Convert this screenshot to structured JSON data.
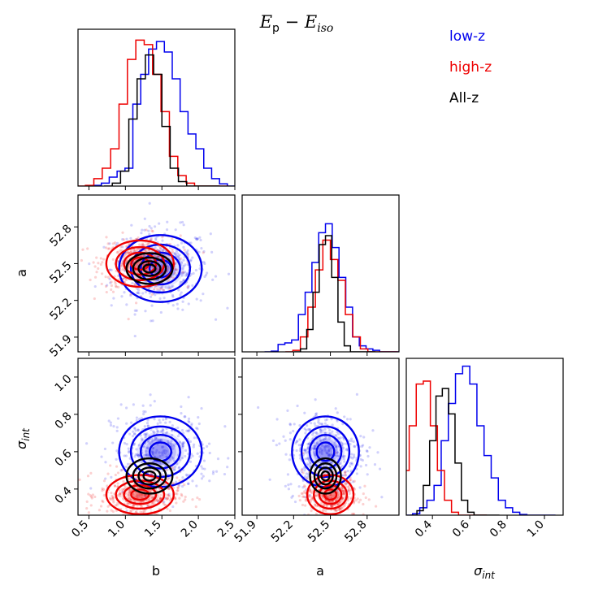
{
  "chart_data": {
    "type": "corner",
    "title": {
      "main": "E",
      "main_sub": "p",
      "dash": " − ",
      "second": "E",
      "second_sub": "iso"
    },
    "parameters": [
      {
        "name": "b",
        "label": "b",
        "range": [
          0.35,
          2.5
        ],
        "ticks": [
          0.5,
          1.0,
          1.5,
          2.0,
          2.5
        ]
      },
      {
        "name": "a",
        "label": "a",
        "range": [
          51.78,
          53.06
        ],
        "ticks": [
          51.9,
          52.2,
          52.5,
          52.8
        ]
      },
      {
        "name": "sigma_int",
        "label": "σ",
        "label_sub": "int",
        "range": [
          0.26,
          1.1
        ],
        "ticks": [
          0.4,
          0.6,
          0.8,
          1.0
        ]
      }
    ],
    "series": [
      {
        "name": "low-z",
        "color": "#0000ee",
        "mean": {
          "b": 1.48,
          "a": 52.46,
          "sigma_int": 0.6
        },
        "sd": {
          "b": 0.27,
          "a": 0.13,
          "sigma_int": 0.09
        },
        "hist_b": [
          0.005,
          0.02,
          0.06,
          0.1,
          0.12,
          0.55,
          0.75,
          0.92,
          0.97,
          0.9,
          0.72,
          0.5,
          0.35,
          0.25,
          0.12,
          0.05,
          0.015
        ],
        "hist_a": [
          0.005,
          0.05,
          0.06,
          0.08,
          0.25,
          0.4,
          0.6,
          0.8,
          0.86,
          0.7,
          0.5,
          0.3,
          0.1,
          0.04,
          0.02,
          0.01
        ],
        "hist_sigma_int": [
          0.01,
          0.05,
          0.1,
          0.2,
          0.5,
          0.75,
          0.95,
          1.0,
          0.88,
          0.6,
          0.4,
          0.25,
          0.1,
          0.05,
          0.02,
          0.005
        ]
      },
      {
        "name": "high-z",
        "color": "#ee0000",
        "mean": {
          "b": 1.2,
          "a": 52.5,
          "sigma_int": 0.37
        },
        "sd": {
          "b": 0.22,
          "a": 0.09,
          "sigma_int": 0.05
        },
        "hist_b": [
          0.005,
          0.05,
          0.12,
          0.25,
          0.55,
          0.85,
          0.98,
          0.95,
          0.75,
          0.5,
          0.2,
          0.07,
          0.02
        ],
        "hist_a": [
          0.01,
          0.1,
          0.3,
          0.55,
          0.75,
          0.62,
          0.48,
          0.25,
          0.1,
          0.02
        ],
        "hist_sigma_int": [
          0.05,
          0.3,
          0.6,
          0.88,
          0.9,
          0.6,
          0.3,
          0.1,
          0.02
        ]
      },
      {
        "name": "All-z",
        "color": "#000000",
        "mean": {
          "b": 1.33,
          "a": 52.46,
          "sigma_int": 0.47
        },
        "sd": {
          "b": 0.15,
          "a": 0.06,
          "sigma_int": 0.045
        },
        "hist_b": [
          0.02,
          0.1,
          0.45,
          0.72,
          0.88,
          0.75,
          0.4,
          0.12,
          0.03
        ],
        "hist_a": [
          0.02,
          0.15,
          0.4,
          0.72,
          0.78,
          0.5,
          0.2,
          0.04
        ],
        "hist_sigma_int": [
          0.03,
          0.2,
          0.5,
          0.8,
          0.85,
          0.68,
          0.35,
          0.1,
          0.02
        ]
      }
    ],
    "legend": {
      "placement": "top-right",
      "entries": [
        "low-z",
        "high-z",
        "All-z"
      ]
    }
  }
}
